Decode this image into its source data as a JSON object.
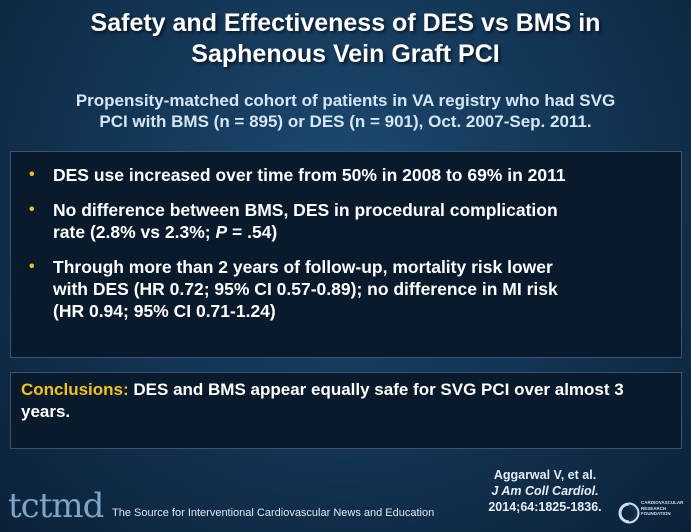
{
  "slide": {
    "title": [
      "Safety and Effectiveness of DES vs BMS in",
      "Saphenous Vein Graft PCI"
    ],
    "subtitle": [
      "Propensity-matched cohort of patients in VA registry who had SVG",
      "PCI with BMS (n = 895) or DES (n = 901), Oct. 2007-Sep. 2011."
    ],
    "bullet_marker": "•",
    "bullets": [
      {
        "lines": [
          "DES use increased over time from 50% in 2008 to 69% in 2011"
        ]
      },
      {
        "lines": [
          "No difference between BMS, DES in procedural complication",
          "rate (2.8% vs 2.3%; "
        ],
        "italic": "P",
        "tail": " = .54)"
      },
      {
        "lines": [
          "Through more than 2 years of follow-up, mortality risk lower",
          "with DES (HR 0.72; 95% CI 0.57-0.89); no difference in MI risk",
          "(HR 0.94; 95% CI 0.71-1.24)"
        ]
      }
    ],
    "conclusion": {
      "label": "Conclusions:",
      "text": " DES and BMS appear equally safe for SVG PCI over almost 3 years."
    },
    "citation": {
      "authors": "Aggarwal V, et al. ",
      "journal": "J Am Coll Cardiol.",
      "ref": "2014;64:1825-1836."
    }
  },
  "footer": {
    "logo_text": "tctmd",
    "tagline": "The Source for Interventional Cardiovascular News and Education",
    "crf_text": [
      "CARDIOVASCULAR",
      "RESEARCH",
      "FOUNDATION"
    ]
  },
  "colors": {
    "background": "#143757",
    "box": "#081a2c",
    "accent": "#f2c21b",
    "subtitle": "#d6e6f6"
  }
}
